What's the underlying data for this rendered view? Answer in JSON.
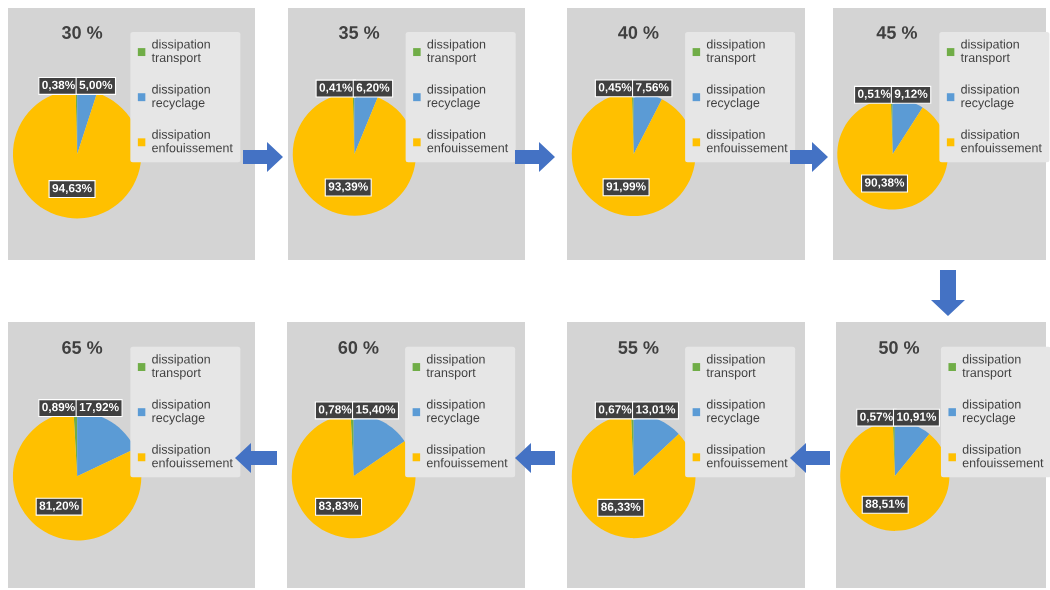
{
  "chart_data": [
    {
      "type": "pie",
      "title": "30 %",
      "categories": [
        "dissipation transport",
        "dissipation recyclage",
        "dissipation enfouissement"
      ],
      "values": [
        0.38,
        5.0,
        94.63
      ],
      "value_labels": [
        "0,38%",
        "5,00%",
        "94,63%"
      ],
      "colors": [
        "#70ad47",
        "#5b9bd5",
        "#ffc000"
      ],
      "legend": "right"
    },
    {
      "type": "pie",
      "title": "35 %",
      "categories": [
        "dissipation transport",
        "dissipation recyclage",
        "dissipation enfouissement"
      ],
      "values": [
        0.41,
        6.2,
        93.39
      ],
      "value_labels": [
        "0,41%",
        "6,20%",
        "93,39%"
      ],
      "colors": [
        "#70ad47",
        "#5b9bd5",
        "#ffc000"
      ],
      "legend": "right"
    },
    {
      "type": "pie",
      "title": "40 %",
      "categories": [
        "dissipation transport",
        "dissipation recyclage",
        "dissipation enfouissement"
      ],
      "values": [
        0.45,
        7.56,
        91.99
      ],
      "value_labels": [
        "0,45%",
        "7,56%",
        "91,99%"
      ],
      "colors": [
        "#70ad47",
        "#5b9bd5",
        "#ffc000"
      ],
      "legend": "right"
    },
    {
      "type": "pie",
      "title": "45 %",
      "categories": [
        "dissipation transport",
        "dissipation recyclage",
        "dissipation enfouissement"
      ],
      "values": [
        0.51,
        9.12,
        90.38
      ],
      "value_labels": [
        "0,51%",
        "9,12%",
        "90,38%"
      ],
      "colors": [
        "#70ad47",
        "#5b9bd5",
        "#ffc000"
      ],
      "legend": "right"
    },
    {
      "type": "pie",
      "title": "65 %",
      "categories": [
        "dissipation transport",
        "dissipation recyclage",
        "dissipation enfouissement"
      ],
      "values": [
        0.89,
        17.92,
        81.2
      ],
      "value_labels": [
        "0,89%",
        "17,92%",
        "81,20%"
      ],
      "colors": [
        "#70ad47",
        "#5b9bd5",
        "#ffc000"
      ],
      "legend": "right"
    },
    {
      "type": "pie",
      "title": "60 %",
      "categories": [
        "dissipation transport",
        "dissipation recyclage",
        "dissipation enfouissement"
      ],
      "values": [
        0.78,
        15.4,
        83.83
      ],
      "value_labels": [
        "0,78%",
        "15,40%",
        "83,83%"
      ],
      "colors": [
        "#70ad47",
        "#5b9bd5",
        "#ffc000"
      ],
      "legend": "right"
    },
    {
      "type": "pie",
      "title": "55 %",
      "categories": [
        "dissipation transport",
        "dissipation recyclage",
        "dissipation enfouissement"
      ],
      "values": [
        0.67,
        13.01,
        86.33
      ],
      "value_labels": [
        "0,67%",
        "13,01%",
        "86,33%"
      ],
      "colors": [
        "#70ad47",
        "#5b9bd5",
        "#ffc000"
      ],
      "legend": "right"
    },
    {
      "type": "pie",
      "title": "50 %",
      "categories": [
        "dissipation transport",
        "dissipation recyclage",
        "dissipation enfouissement"
      ],
      "values": [
        0.57,
        10.91,
        88.51
      ],
      "value_labels": [
        "0,57%",
        "10,91%",
        "88,51%"
      ],
      "colors": [
        "#70ad47",
        "#5b9bd5",
        "#ffc000"
      ],
      "legend": "right"
    }
  ]
}
